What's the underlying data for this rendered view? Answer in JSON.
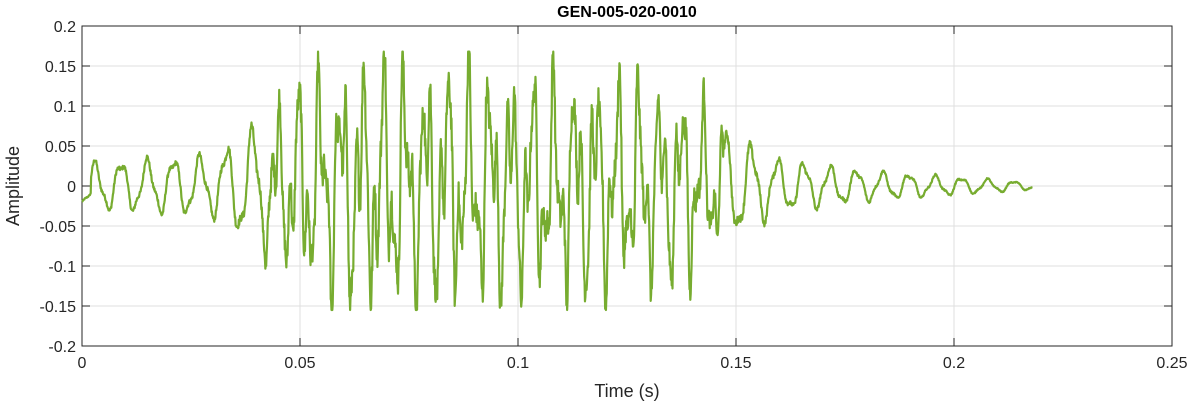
{
  "chart_data": {
    "type": "line",
    "title": "GEN-005-020-0010",
    "xlabel": "Time (s)",
    "ylabel": "Amplitude",
    "xlim": [
      0,
      0.25
    ],
    "ylim": [
      -0.2,
      0.2
    ],
    "xticks": [
      0,
      0.05,
      0.1,
      0.15,
      0.2,
      0.25
    ],
    "xtick_labels": [
      "0",
      "0.05",
      "0.1",
      "0.15",
      "0.2",
      "0.25"
    ],
    "yticks": [
      0.2,
      0.15,
      0.1,
      0.05,
      0,
      -0.05,
      -0.1,
      -0.15,
      -0.2
    ],
    "ytick_labels": [
      "0.2",
      "0.15",
      "0.1",
      "0.05",
      "0",
      "-0.05",
      "-0.1",
      "-0.15",
      "-0.2"
    ],
    "grid": true,
    "legend": "none",
    "line_color": "#77ac30",
    "signal": {
      "duration_s": 0.218,
      "description_points": "Decaying oscillatory waveform: low amplitude (~0.03) until 0.035 s, large oscillations up to ~0.16 / -0.15 between 0.045 and 0.145 s, then decaying ringing to ~0.005 by 0.218 s",
      "envelope": [
        {
          "t": 0.0,
          "amp": 0.03
        },
        {
          "t": 0.03,
          "amp": 0.04
        },
        {
          "t": 0.04,
          "amp": 0.08
        },
        {
          "t": 0.05,
          "amp": 0.13
        },
        {
          "t": 0.06,
          "amp": 0.155
        },
        {
          "t": 0.075,
          "amp": 0.16
        },
        {
          "t": 0.1,
          "amp": 0.14
        },
        {
          "t": 0.12,
          "amp": 0.14
        },
        {
          "t": 0.14,
          "amp": 0.12
        },
        {
          "t": 0.148,
          "amp": 0.07
        },
        {
          "t": 0.16,
          "amp": 0.035
        },
        {
          "t": 0.18,
          "amp": 0.02
        },
        {
          "t": 0.2,
          "amp": 0.012
        },
        {
          "t": 0.218,
          "amp": 0.005
        }
      ]
    }
  }
}
